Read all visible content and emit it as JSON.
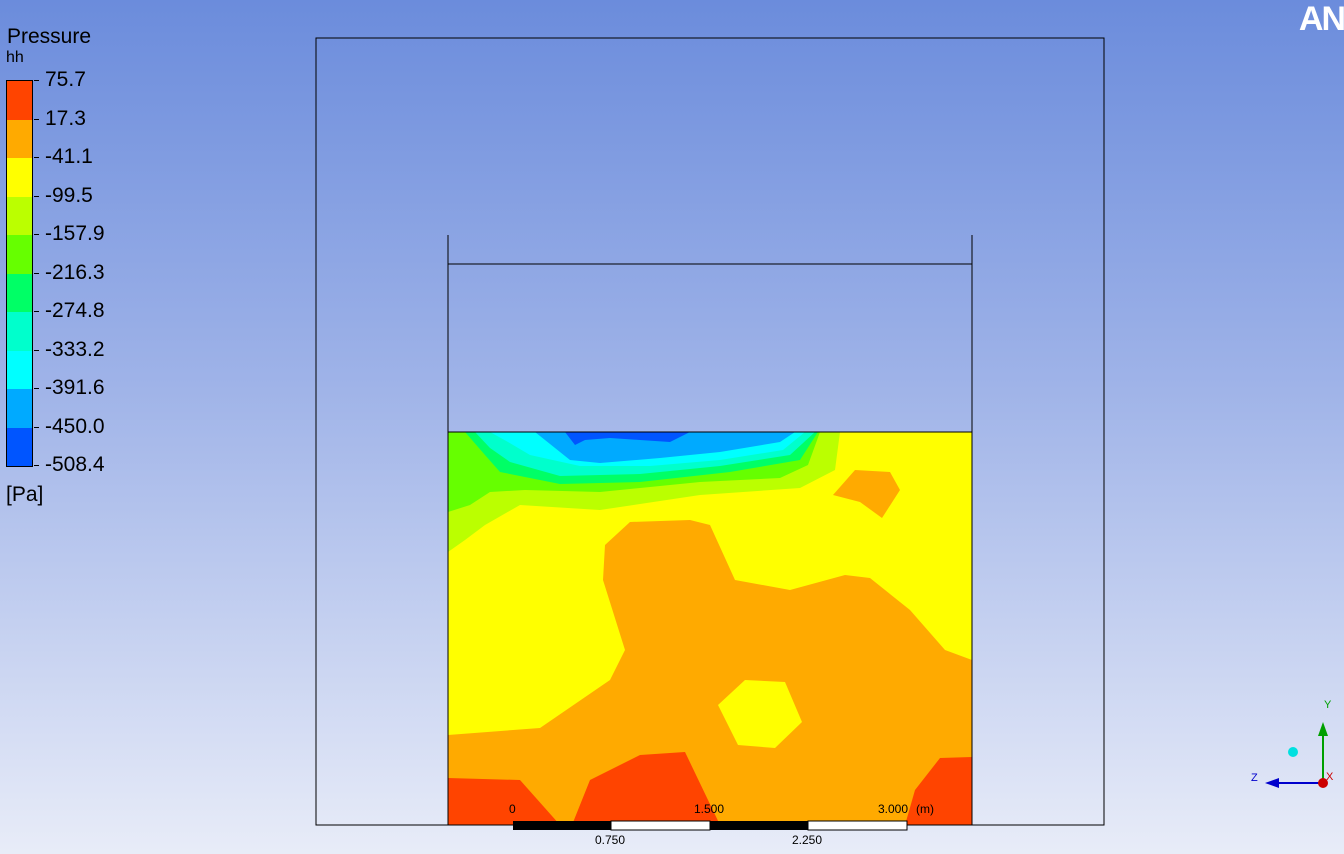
{
  "brand": {
    "logo_text": "AN"
  },
  "legend": {
    "title": "Pressure",
    "subtitle": "hh",
    "unit": "[Pa]",
    "colors": [
      "#ff4400",
      "#ffaa00",
      "#ffff00",
      "#bbff00",
      "#66ff00",
      "#00ff66",
      "#00ffcc",
      "#00ffff",
      "#00aaff",
      "#0055ff"
    ],
    "ticks": [
      "75.7",
      "17.3",
      "-41.1",
      "-99.5",
      "-157.9",
      "-216.3",
      "-274.8",
      "-333.2",
      "-391.6",
      "-450.0",
      "-508.4"
    ]
  },
  "scale_bar": {
    "top_labels": [
      "0",
      "1.500",
      "3.000"
    ],
    "unit": "(m)",
    "bottom_labels": [
      "0.750",
      "2.250"
    ]
  },
  "triad": {
    "y_label": "Y",
    "z_label": "Z",
    "x_label": "X"
  }
}
